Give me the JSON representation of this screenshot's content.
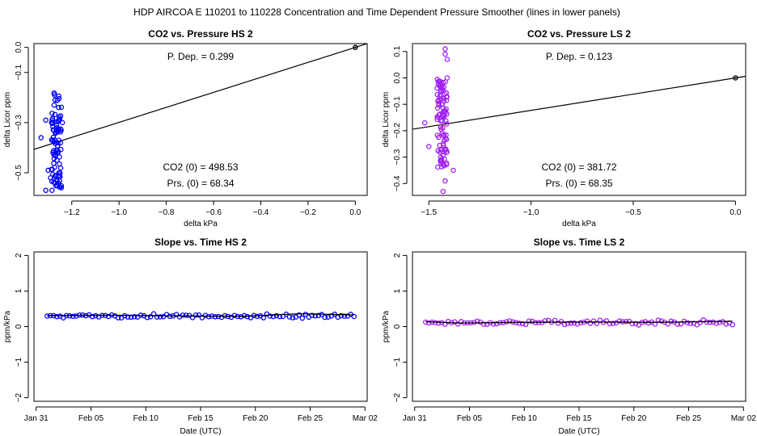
{
  "suptitle": "HDP   AIRCOA E   110201 to 110228   Concentration and Time Dependent Pressure Smoother (lines in lower panels)",
  "colors": {
    "hs": "#0000ff",
    "ls": "#a020f0",
    "line": "#000000"
  },
  "chart_data": [
    {
      "id": "co2-pressure-hs",
      "type": "scatter",
      "title": "CO2 vs. Pressure HS 2",
      "xlabel": "delta kPa",
      "ylabel": "delta Licor ppm",
      "xlim": [
        -1.36,
        0.05
      ],
      "ylim": [
        -0.59,
        0.015
      ],
      "xticks": [
        -1.2,
        -1.0,
        -0.8,
        -0.6,
        -0.4,
        -0.2,
        0.0
      ],
      "xtick_labels": [
        "−1.2",
        "−1.0",
        "−0.8",
        "−0.6",
        "−0.4",
        "−0.2",
        "0.0"
      ],
      "yticks": [
        0.0,
        -0.1,
        -0.3,
        -0.5
      ],
      "ytick_labels": [
        "0.0",
        "−0.1",
        "−0.3",
        "−0.5"
      ],
      "annotations": {
        "pdep": "P. Dep. =  0.299",
        "co2zero": "CO2 (0) =  498.53",
        "prszero": "Prs. (0) =  68.34"
      },
      "fit_line": {
        "slope": 0.299,
        "intercept": 0.0
      },
      "anchor_point": {
        "x": 0.0,
        "y": 0.0
      },
      "cluster": {
        "x_center": -1.265,
        "x_spread": 0.022,
        "y_min": -0.57,
        "y_max": -0.18,
        "n": 90,
        "seed": 11,
        "outliers": [
          [
            -1.31,
            -0.57
          ],
          [
            -1.33,
            -0.36
          ],
          [
            -1.31,
            -0.29
          ],
          [
            -1.3,
            -0.49
          ],
          [
            -1.29,
            -0.52
          ],
          [
            -1.24,
            -0.3
          ]
        ]
      },
      "color_key": "hs"
    },
    {
      "id": "co2-pressure-ls",
      "type": "scatter",
      "title": "CO2 vs. Pressure LS 2",
      "xlabel": "delta kPa",
      "ylabel": "delta Licor ppm",
      "xlim": [
        -1.58,
        0.05
      ],
      "ylim": [
        -0.445,
        0.13
      ],
      "xticks": [
        -1.5,
        -1.0,
        -0.5,
        0.0
      ],
      "xtick_labels": [
        "−1.5",
        "−1.0",
        "−0.5",
        "0.0"
      ],
      "yticks": [
        0.1,
        0.0,
        -0.1,
        -0.2,
        -0.3,
        -0.4
      ],
      "ytick_labels": [
        "0.1",
        "0.0",
        "−0.1",
        "−0.2",
        "−0.3",
        "−0.4"
      ],
      "annotations": {
        "pdep": "P. Dep. =  0.123",
        "co2zero": "CO2 (0) =  381.72",
        "prszero": "Prs. (0) =  68.35"
      },
      "fit_line": {
        "slope": 0.123,
        "intercept": 0.0
      },
      "anchor_point": {
        "x": 0.0,
        "y": 0.0
      },
      "cluster": {
        "x_center": -1.435,
        "x_spread": 0.025,
        "y_min": -0.34,
        "y_max": 0.0,
        "n": 100,
        "seed": 29,
        "outliers": [
          [
            -1.42,
            0.11
          ],
          [
            -1.42,
            0.09
          ],
          [
            -1.41,
            0.07
          ],
          [
            -1.43,
            -0.43
          ],
          [
            -1.5,
            -0.26
          ],
          [
            -1.52,
            -0.17
          ],
          [
            -1.38,
            -0.35
          ],
          [
            -1.42,
            -0.39
          ],
          [
            -1.41,
            0.0
          ]
        ]
      },
      "color_key": "ls"
    },
    {
      "id": "slope-time-hs",
      "type": "line",
      "title": "Slope vs. Time HS 2",
      "xlabel": "Date (UTC)",
      "ylabel": "ppm/kPa",
      "xlim": [
        -0.2,
        30.2
      ],
      "ylim": [
        -2.1,
        2.1
      ],
      "xticks": [
        0,
        5,
        10,
        15,
        20,
        25,
        30
      ],
      "xtick_labels": [
        "Jan 31",
        "Feb 05",
        "Feb 10",
        "Feb 15",
        "Feb 20",
        "Feb 25",
        "Mar 02"
      ],
      "yticks": [
        -2,
        -1,
        0,
        1,
        2
      ],
      "ytick_labels": [
        "−2",
        "−1",
        "0",
        "1",
        "2"
      ],
      "series_x": [
        1.0,
        29.0
      ],
      "series_base": [
        0.3,
        0.3
      ],
      "noise": 0.07,
      "n": 96,
      "seed": 5,
      "smoother": [
        [
          1.0,
          0.31
        ],
        [
          7.0,
          0.32
        ],
        [
          13.0,
          0.3
        ],
        [
          19.0,
          0.29
        ],
        [
          24.0,
          0.36
        ],
        [
          29.0,
          0.33
        ]
      ],
      "color_key": "hs"
    },
    {
      "id": "slope-time-ls",
      "type": "line",
      "title": "Slope vs. Time LS 2",
      "xlabel": "Date (UTC)",
      "ylabel": "ppm/kPa",
      "xlim": [
        -0.2,
        30.2
      ],
      "ylim": [
        -2.1,
        2.1
      ],
      "xticks": [
        0,
        5,
        10,
        15,
        20,
        25,
        30
      ],
      "xtick_labels": [
        "Jan 31",
        "Feb 05",
        "Feb 10",
        "Feb 15",
        "Feb 20",
        "Feb 25",
        "Mar 02"
      ],
      "yticks": [
        -2,
        -1,
        0,
        1,
        2
      ],
      "ytick_labels": [
        "−2",
        "−1",
        "0",
        "1",
        "2"
      ],
      "series_x": [
        1.0,
        29.0
      ],
      "series_base": [
        0.12,
        0.12
      ],
      "noise": 0.08,
      "n": 96,
      "seed": 17,
      "smoother": [
        [
          1.0,
          0.14
        ],
        [
          4.0,
          0.1
        ],
        [
          10.0,
          0.12
        ],
        [
          16.0,
          0.13
        ],
        [
          22.0,
          0.12
        ],
        [
          29.0,
          0.15
        ]
      ],
      "color_key": "ls"
    }
  ]
}
